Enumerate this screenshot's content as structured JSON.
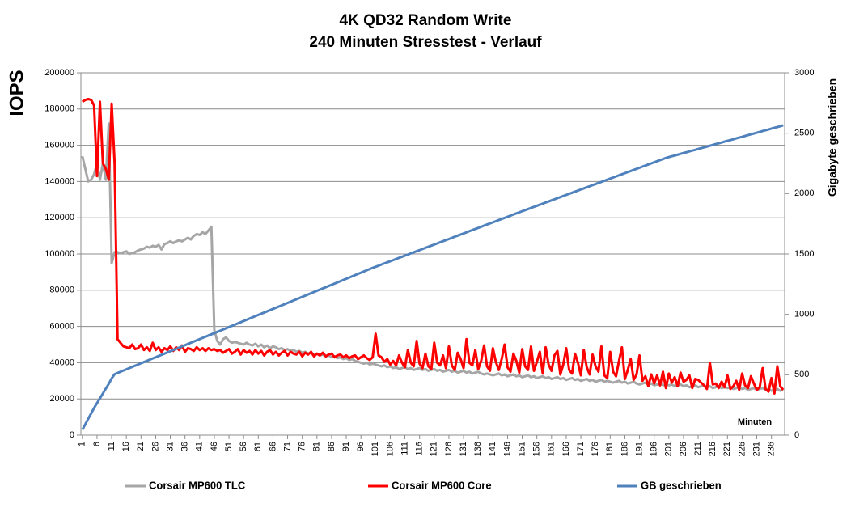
{
  "chart_data": {
    "type": "line",
    "title": "4K QD32 Random Write",
    "subtitle": "240 Minuten Stresstest - Verlauf",
    "y_label": "IOPS",
    "y2_label": "Gigabyte geschrieben",
    "annotation": "Minuten",
    "grid": true,
    "legend": "bottom",
    "ylim": [
      0,
      200000
    ],
    "yticks": [
      0,
      20000,
      40000,
      60000,
      80000,
      100000,
      120000,
      140000,
      160000,
      180000,
      200000
    ],
    "y2lim": [
      0,
      3000
    ],
    "y2ticks": [
      0,
      500,
      1000,
      1500,
      2000,
      2500,
      3000
    ],
    "categories": [
      1,
      null,
      null,
      null,
      null,
      6,
      null,
      null,
      null,
      null,
      11,
      null,
      null,
      null,
      null,
      16,
      null,
      null,
      null,
      null,
      21,
      null,
      null,
      null,
      null,
      26,
      null,
      null,
      null,
      null,
      31,
      null,
      null,
      null,
      null,
      36,
      null,
      null,
      null,
      null,
      41,
      null,
      null,
      null,
      null,
      46,
      null,
      null,
      null,
      null,
      51,
      null,
      null,
      null,
      null,
      56,
      null,
      null,
      null,
      null,
      61,
      null,
      null,
      null,
      null,
      66,
      null,
      null,
      null,
      null,
      71,
      null,
      null,
      null,
      null,
      76,
      null,
      null,
      null,
      null,
      81,
      null,
      null,
      null,
      null,
      86,
      null,
      null,
      null,
      null,
      91,
      null,
      null,
      null,
      null,
      96,
      null,
      null,
      null,
      null,
      101,
      null,
      null,
      null,
      null,
      106,
      null,
      null,
      null,
      null,
      111,
      null,
      null,
      null,
      null,
      116,
      null,
      null,
      null,
      null,
      121,
      null,
      null,
      null,
      null,
      126,
      null,
      null,
      null,
      null,
      131,
      null,
      null,
      null,
      null,
      136,
      null,
      null,
      null,
      null,
      141,
      null,
      null,
      null,
      null,
      146,
      null,
      null,
      null,
      null,
      151,
      null,
      null,
      null,
      null,
      156,
      null,
      null,
      null,
      null,
      161,
      null,
      null,
      null,
      null,
      166,
      null,
      null,
      null,
      null,
      171,
      null,
      null,
      null,
      null,
      176,
      null,
      null,
      null,
      null,
      181,
      null,
      null,
      null,
      null,
      186,
      null,
      null,
      null,
      null,
      191,
      null,
      null,
      null,
      null,
      196,
      null,
      null,
      null,
      null,
      201,
      null,
      null,
      null,
      null,
      206,
      null,
      null,
      null,
      null,
      211,
      null,
      null,
      null,
      null,
      216,
      null,
      null,
      null,
      null,
      221,
      null,
      null,
      null,
      null,
      226,
      null,
      null,
      null,
      null,
      231,
      null,
      null,
      null,
      null,
      236,
      null,
      null,
      null,
      null
    ],
    "series": [
      {
        "name": "Corsair MP600 TLC",
        "color": "#a6a6a6",
        "values": [
          154000,
          147000,
          140000,
          141000,
          144000,
          150000,
          141000,
          150000,
          141000,
          172000,
          95000,
          101000,
          101000,
          100500,
          101000,
          101500,
          100000,
          100500,
          101000,
          102000,
          102500,
          103000,
          104000,
          103500,
          104500,
          104000,
          105000,
          102500,
          105500,
          106000,
          107000,
          106000,
          107000,
          107500,
          107000,
          108000,
          109000,
          108000,
          110000,
          111000,
          110500,
          112000,
          111000,
          113000,
          115000,
          58000,
          52000,
          50000,
          53000,
          54000,
          52000,
          51000,
          51500,
          51000,
          50500,
          50000,
          51000,
          50000,
          49500,
          50500,
          49000,
          50000,
          48500,
          49500,
          48000,
          49000,
          48500,
          47500,
          48000,
          47000,
          47500,
          46500,
          47000,
          46000,
          46500,
          45500,
          46000,
          45000,
          45500,
          44500,
          45000,
          44000,
          44500,
          43500,
          44000,
          43000,
          43500,
          42500,
          43000,
          42000,
          42500,
          41500,
          42000,
          41000,
          40500,
          40000,
          39500,
          40000,
          39000,
          39500,
          39000,
          38500,
          38000,
          38500,
          37500,
          38000,
          37000,
          37500,
          36500,
          37000,
          37500,
          36500,
          37000,
          36000,
          36500,
          37000,
          36000,
          36500,
          35500,
          36000,
          36500,
          35500,
          36000,
          35000,
          35500,
          36000,
          35000,
          35500,
          34500,
          35000,
          35500,
          34500,
          35000,
          34000,
          34500,
          35000,
          34000,
          33500,
          34000,
          33500,
          33000,
          33500,
          34000,
          33000,
          33500,
          32500,
          33000,
          33500,
          32500,
          33000,
          32000,
          32500,
          33000,
          32000,
          32500,
          31500,
          32000,
          32500,
          31500,
          32000,
          31000,
          31500,
          32000,
          31000,
          31500,
          30500,
          31000,
          31500,
          30500,
          31000,
          30000,
          30500,
          31000,
          30000,
          30500,
          29500,
          30000,
          30500,
          29500,
          30000,
          29500,
          29000,
          29500,
          30000,
          29000,
          29500,
          28500,
          29000,
          29500,
          28500,
          28000,
          28500,
          29000,
          28000,
          28500,
          27500,
          28000,
          28500,
          27500,
          28000,
          27500,
          28000,
          27000,
          27500,
          28000,
          27000,
          27500,
          26500,
          27000,
          27500,
          26500,
          27000,
          27500,
          26500,
          27000,
          26000,
          26500,
          27000,
          26000,
          26500,
          26000,
          26500,
          25500,
          26000,
          26500,
          25500,
          26000,
          25000,
          25500,
          26000,
          25000,
          25500,
          26000,
          25000,
          25500,
          24500,
          25000,
          25500,
          24500,
          25000
        ]
      },
      {
        "name": "Corsair MP600 Core",
        "color": "#ff0000",
        "values": [
          184000,
          185000,
          185500,
          185000,
          182000,
          143000,
          184000,
          150000,
          147000,
          141000,
          183000,
          150000,
          53000,
          51000,
          49000,
          48500,
          48000,
          50000,
          47500,
          48000,
          50000,
          47000,
          48500,
          46500,
          51000,
          47000,
          48500,
          46000,
          48000,
          47000,
          49000,
          46500,
          48500,
          47000,
          49500,
          46000,
          48000,
          47500,
          46500,
          48500,
          47000,
          48000,
          46500,
          48000,
          47000,
          47500,
          46500,
          47000,
          45500,
          46500,
          47500,
          45000,
          46000,
          47500,
          44500,
          47000,
          45500,
          46500,
          44500,
          47000,
          45000,
          46500,
          44000,
          46000,
          47000,
          44500,
          46000,
          44000,
          45500,
          46500,
          44000,
          46000,
          45000,
          44500,
          46000,
          43500,
          45500,
          44500,
          46000,
          43500,
          45000,
          44000,
          45500,
          43500,
          44500,
          45000,
          43000,
          44000,
          44500,
          43000,
          44000,
          42500,
          43500,
          44000,
          42000,
          43000,
          44000,
          42500,
          41500,
          43000,
          56000,
          44000,
          43000,
          40500,
          42000,
          39000,
          41000,
          38500,
          44000,
          40000,
          37500,
          47000,
          40000,
          38000,
          52000,
          39500,
          37000,
          45000,
          38000,
          36500,
          51000,
          40000,
          38500,
          44000,
          37000,
          49000,
          38500,
          36000,
          45500,
          42000,
          37000,
          53000,
          40000,
          38500,
          47000,
          36500,
          41000,
          49500,
          38000,
          35500,
          48000,
          40500,
          36000,
          42000,
          50000,
          37500,
          35000,
          45000,
          41000,
          34500,
          47500,
          38000,
          36000,
          49000,
          35500,
          40500,
          46000,
          34000,
          48500,
          39000,
          35500,
          44000,
          46500,
          33500,
          39000,
          48000,
          36000,
          34000,
          45000,
          40000,
          33000,
          47000,
          37500,
          33500,
          44500,
          38000,
          35000,
          49000,
          33000,
          31500,
          46000,
          35000,
          32500,
          41000,
          48500,
          31000,
          36000,
          42000,
          30500,
          33500,
          44000,
          30000,
          32500,
          27000,
          33500,
          28500,
          33000,
          27500,
          35000,
          26000,
          34000,
          29000,
          32000,
          27000,
          34500,
          29500,
          30500,
          33000,
          26000,
          31000,
          30500,
          29000,
          27500,
          25500,
          40000,
          28000,
          28500,
          26000,
          29500,
          26500,
          33000,
          25500,
          27000,
          30000,
          25000,
          34000,
          27500,
          26000,
          32500,
          28500,
          25000,
          26500,
          37000,
          25500,
          24000,
          31500,
          23000,
          38000,
          27000,
          25000
        ]
      },
      {
        "name": "GB geschrieben",
        "color": "#4f81bd",
        "axis": "y2",
        "values": [
          45,
          90,
          135,
          180,
          225,
          265,
          305,
          345,
          385,
          425,
          470,
          505,
          515,
          525,
          535,
          545,
          555,
          565,
          575,
          585,
          595,
          605,
          615,
          625,
          635,
          645,
          655,
          665,
          675,
          685,
          695,
          705,
          715,
          725,
          735,
          745,
          755,
          765,
          775,
          785,
          795,
          805,
          815,
          825,
          835,
          845,
          855,
          865,
          875,
          885,
          895,
          905,
          915,
          925,
          935,
          945,
          955,
          965,
          975,
          985,
          995,
          1005,
          1015,
          1025,
          1035,
          1045,
          1055,
          1065,
          1075,
          1085,
          1095,
          1105,
          1115,
          1125,
          1135,
          1145,
          1155,
          1165,
          1175,
          1185,
          1195,
          1205,
          1215,
          1225,
          1235,
          1245,
          1255,
          1265,
          1275,
          1285,
          1295,
          1305,
          1315,
          1325,
          1335,
          1345,
          1355,
          1365,
          1375,
          1385,
          1394,
          1403,
          1413,
          1422,
          1431,
          1440,
          1449,
          1459,
          1468,
          1477,
          1486,
          1495,
          1505,
          1514,
          1523,
          1532,
          1541,
          1551,
          1560,
          1569,
          1578,
          1587,
          1597,
          1606,
          1615,
          1624,
          1633,
          1643,
          1652,
          1661,
          1670,
          1679,
          1689,
          1698,
          1707,
          1716,
          1725,
          1735,
          1744,
          1753,
          1762,
          1771,
          1781,
          1790,
          1799,
          1808,
          1817,
          1827,
          1836,
          1845,
          1854,
          1863,
          1872,
          1881,
          1890,
          1899,
          1908,
          1917,
          1926,
          1935,
          1944,
          1953,
          1962,
          1971,
          1980,
          1989,
          1998,
          2007,
          2016,
          2025,
          2034,
          2043,
          2052,
          2061,
          2070,
          2079,
          2088,
          2097,
          2106,
          2115,
          2124,
          2133,
          2142,
          2151,
          2160,
          2169,
          2178,
          2187,
          2196,
          2205,
          2214,
          2223,
          2232,
          2241,
          2250,
          2259,
          2268,
          2277,
          2286,
          2295,
          2302,
          2309,
          2315,
          2322,
          2329,
          2336,
          2342,
          2349,
          2356,
          2362,
          2369,
          2376,
          2383,
          2389,
          2396,
          2403,
          2410,
          2416,
          2423,
          2430,
          2437,
          2443,
          2450,
          2457,
          2464,
          2470,
          2477,
          2484,
          2491,
          2497,
          2504,
          2511,
          2518,
          2524,
          2531,
          2538,
          2545,
          2551,
          2558,
          2565
        ]
      }
    ]
  }
}
